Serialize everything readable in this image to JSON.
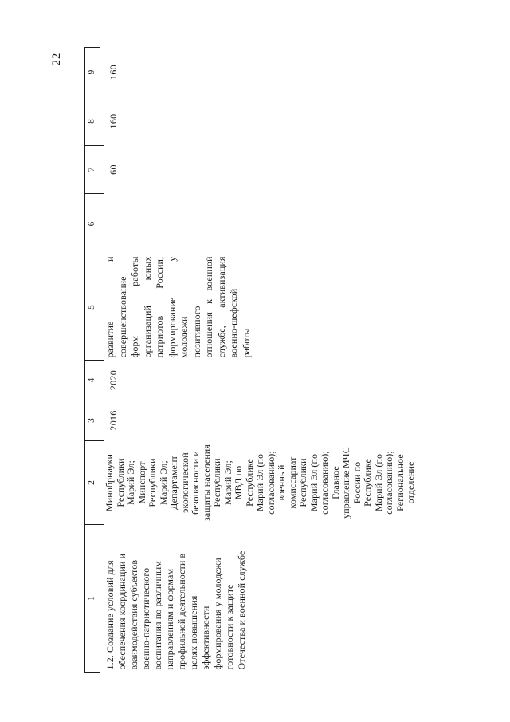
{
  "page_number": "22",
  "table": {
    "column_headers": [
      "1",
      "2",
      "3",
      "4",
      "5",
      "6",
      "7",
      "8",
      "9"
    ],
    "row": {
      "activity_lines": [
        "1.2. Создание условий для",
        "обеспечения координации и",
        "взаимодействия субъектов",
        "военно-патриотического",
        "воспитания по различным",
        "направлениям и формам",
        "профильной деятельности в",
        "целях повышения",
        "эффективности",
        "формирования у молодежи",
        "готовности к защите",
        "Отечества и военной службе"
      ],
      "executors_lines": [
        "Минобрнауки",
        "Республики",
        "Марий Эл;",
        "Минспорт",
        "Республики",
        "Марий Эл;",
        "Департамент",
        "экологической",
        "безопасности и",
        "защиты населения",
        "Республики",
        "Марий Эл;",
        "МВД по",
        "Республике",
        "Марий Эл (по",
        "согласованию);",
        "военный",
        "комиссариат",
        "Республики",
        "Марий Эл (по",
        "согласованию);",
        "Главное",
        "управление МЧС",
        "России по",
        "Республике",
        "Марий Эл (по",
        "согласованию);",
        "Региональное",
        "отделение"
      ],
      "year_start": "2016",
      "year_end": "2020",
      "expected_result_lines": [
        "развитие и",
        "совершенствование",
        "форм работы",
        "организаций юных",
        "патриотов России;",
        "формирование у",
        "молодежи",
        "позитивного",
        "отношения к военной",
        "службе, активизация",
        "военно-шефской",
        "работы"
      ],
      "col6_value": "",
      "col7_value": "60",
      "col8_value": "160",
      "col9_value": "160"
    }
  }
}
